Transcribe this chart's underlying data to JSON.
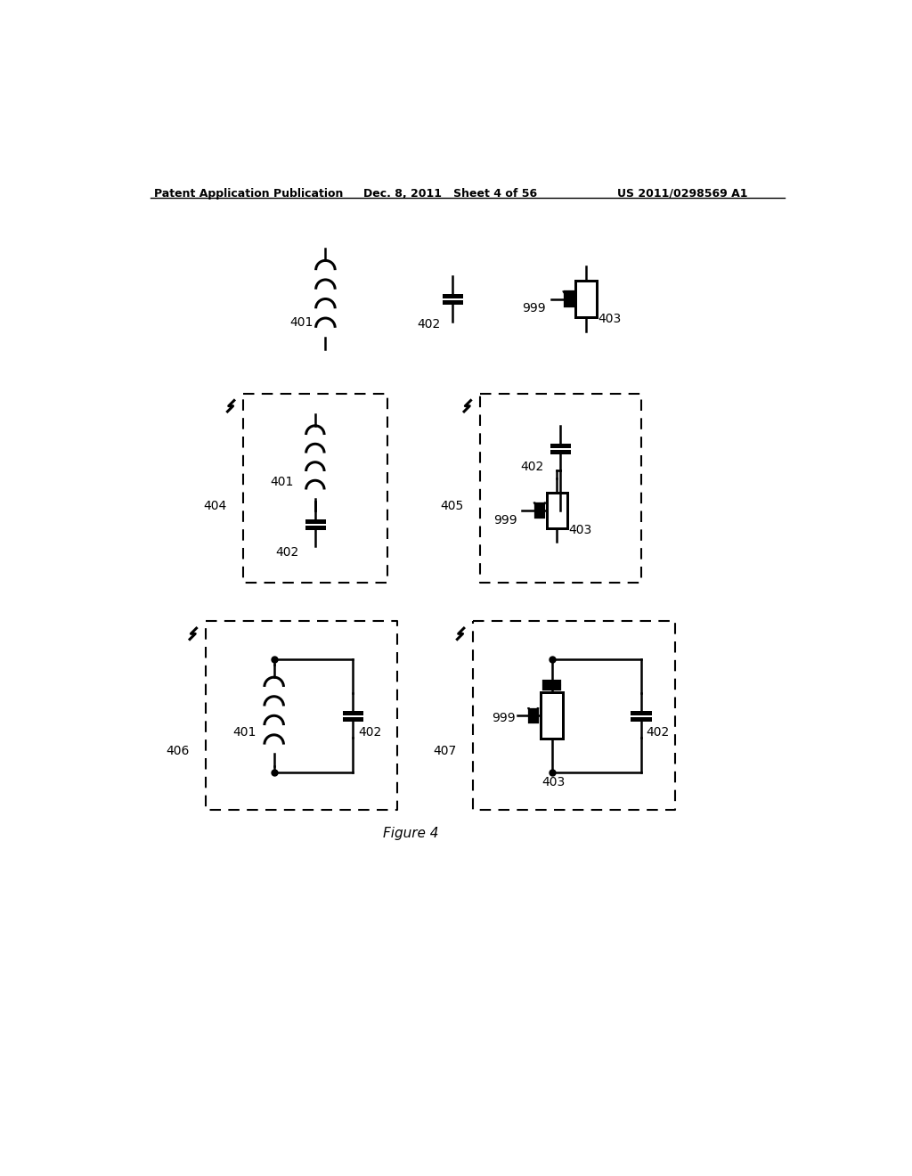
{
  "header_left": "Patent Application Publication",
  "header_mid": "Dec. 8, 2011   Sheet 4 of 56",
  "header_right": "US 2011/0298569 A1",
  "figure_label": "Figure 4",
  "bg_color": "#ffffff",
  "line_color": "#000000"
}
